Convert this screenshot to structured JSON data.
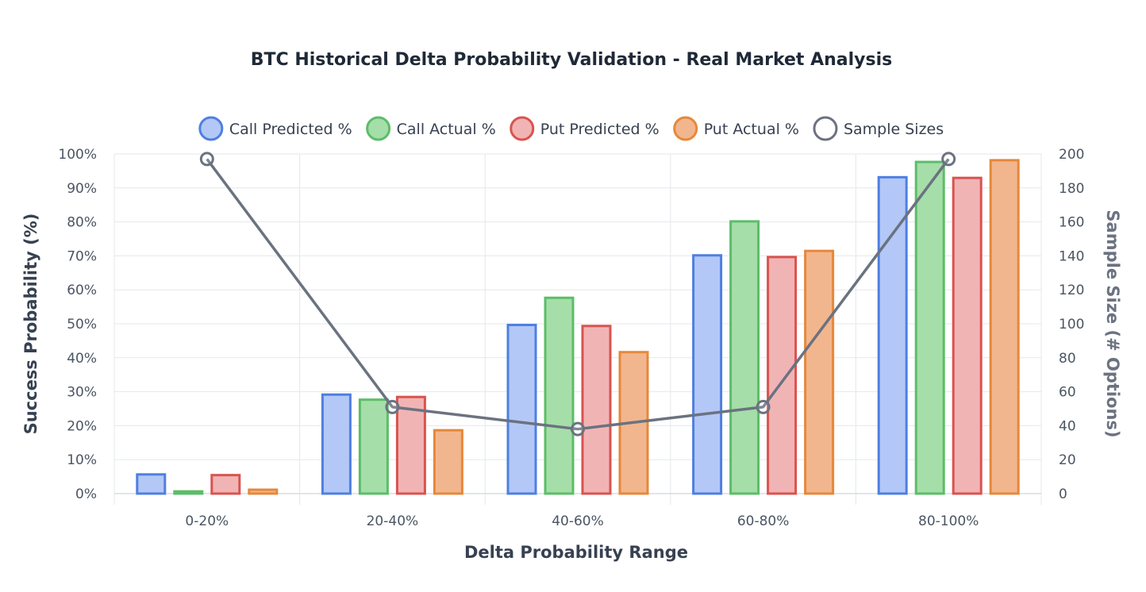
{
  "chart_data": {
    "type": "bar",
    "title": "BTC Historical Delta Probability Validation - Real Market Analysis",
    "xlabel": "Delta Probability Range",
    "ylabel": "Success Probability (%)",
    "y2label": "Sample Size (# Options)",
    "categories": [
      "0-20%",
      "20-40%",
      "40-60%",
      "60-80%",
      "80-100%"
    ],
    "ylim": [
      0,
      100
    ],
    "y2lim": [
      0,
      200
    ],
    "y_ticks": [
      "0%",
      "10%",
      "20%",
      "30%",
      "40%",
      "50%",
      "60%",
      "70%",
      "80%",
      "90%",
      "100%"
    ],
    "y2_ticks": [
      "0",
      "20",
      "40",
      "60",
      "80",
      "100",
      "120",
      "140",
      "160",
      "180",
      "200"
    ],
    "grid": true,
    "legend_position": "top-center",
    "series": [
      {
        "name": "Call Predicted %",
        "values": [
          6,
          29.5,
          50,
          70.5,
          93.5
        ],
        "color": "#4f7fe0",
        "fill": "#b3c8f7"
      },
      {
        "name": "Call Actual %",
        "values": [
          1,
          28,
          58,
          80.5,
          98
        ],
        "color": "#5cbd69",
        "fill": "#a5dea9"
      },
      {
        "name": "Put Predicted %",
        "values": [
          5.8,
          28.8,
          49.7,
          70,
          93.3
        ],
        "color": "#d9534f",
        "fill": "#f1b4b5"
      },
      {
        "name": "Put Actual %",
        "values": [
          1.5,
          19,
          42,
          71.8,
          98.5
        ],
        "color": "#e6883b",
        "fill": "#f2b68e"
      }
    ],
    "line_series": {
      "name": "Sample Sizes",
      "axis": "right",
      "values": [
        197,
        51,
        38,
        51,
        197
      ],
      "color": "#6b7280"
    }
  }
}
